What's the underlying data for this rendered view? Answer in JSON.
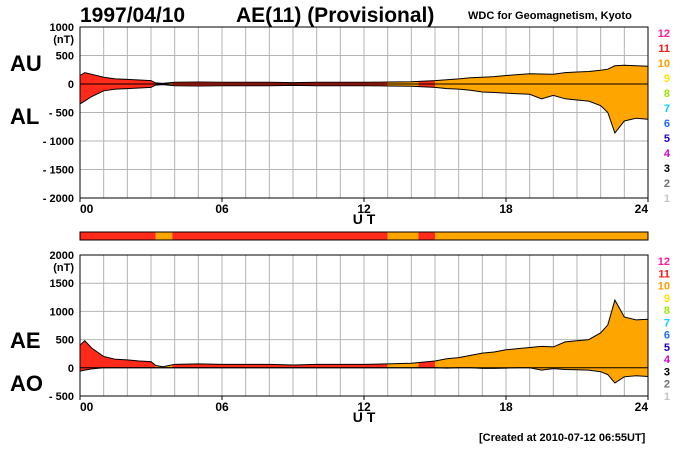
{
  "header": {
    "date": "1997/04/10",
    "title": "AE(11) (Provisional)",
    "source": "WDC for Geomagnetism, Kyoto"
  },
  "footer": {
    "created": "[Created at 2010-07-12 06:55UT]"
  },
  "side_labels": {
    "upper_top": "AU",
    "upper_bottom": "AL",
    "lower_top": "AE",
    "lower_bottom": "AO"
  },
  "colors": {
    "orange": "#ffa500",
    "red": "#ff2a1a",
    "grid": "#b4b4b4",
    "axis": "#000000"
  },
  "station_legend": [
    {
      "label": "12",
      "color": "#ff1a9b"
    },
    {
      "label": "11",
      "color": "#ff1a1a"
    },
    {
      "label": "10",
      "color": "#ff9c00"
    },
    {
      "label": "9",
      "color": "#ffe100"
    },
    {
      "label": "8",
      "color": "#9de600"
    },
    {
      "label": "7",
      "color": "#00d0ff"
    },
    {
      "label": "6",
      "color": "#1f6bff"
    },
    {
      "label": "5",
      "color": "#2000c8"
    },
    {
      "label": "4",
      "color": "#d200d2"
    },
    {
      "label": "3",
      "color": "#000000"
    },
    {
      "label": "2",
      "color": "#707070"
    },
    {
      "label": "1",
      "color": "#c4c4c4"
    }
  ],
  "chart_data": [
    {
      "type": "area",
      "series": [
        {
          "name": "AU",
          "x": [
            0,
            0.2,
            0.5,
            1,
            1.5,
            2,
            2.5,
            3,
            3.2,
            3.5,
            4,
            5,
            6,
            7,
            8,
            9,
            10,
            11,
            12,
            13,
            14,
            15,
            15.5,
            16,
            16.5,
            17,
            17.5,
            18,
            18.5,
            19,
            19.5,
            20,
            20.5,
            21,
            21.5,
            22,
            22.3,
            22.6,
            23,
            23.5,
            24
          ],
          "y": [
            150,
            200,
            170,
            120,
            90,
            80,
            70,
            60,
            20,
            10,
            30,
            35,
            30,
            30,
            30,
            25,
            30,
            30,
            30,
            35,
            40,
            60,
            75,
            90,
            110,
            120,
            130,
            150,
            165,
            180,
            175,
            170,
            200,
            210,
            220,
            240,
            260,
            320,
            330,
            320,
            310
          ]
        },
        {
          "name": "AL",
          "x": [
            0,
            0.2,
            0.5,
            1,
            1.5,
            2,
            2.5,
            3,
            3.2,
            3.5,
            4,
            5,
            6,
            7,
            8,
            9,
            10,
            11,
            12,
            13,
            14,
            15,
            15.5,
            16,
            16.5,
            17,
            17.5,
            18,
            18.5,
            19,
            19.5,
            20,
            20.5,
            21,
            21.5,
            22,
            22.3,
            22.6,
            23,
            23.5,
            24
          ],
          "y": [
            -350,
            -300,
            -220,
            -120,
            -90,
            -80,
            -70,
            -60,
            -20,
            -10,
            -30,
            -35,
            -30,
            -30,
            -30,
            -25,
            -30,
            -30,
            -30,
            -35,
            -40,
            -60,
            -80,
            -90,
            -110,
            -140,
            -150,
            -160,
            -170,
            -180,
            -260,
            -200,
            -260,
            -280,
            -300,
            -380,
            -500,
            -860,
            -650,
            -600,
            -620
          ]
        }
      ],
      "xlabel": "U T",
      "ylabel": "(nT)",
      "xlim": [
        0,
        24
      ],
      "ylim": [
        -2000,
        1000
      ],
      "xticks": [
        "00",
        "06",
        "12",
        "18",
        "24"
      ],
      "yticks": [
        "1000",
        "500",
        "0",
        "- 500",
        "- 1000",
        "- 1500",
        "- 2000"
      ],
      "grid": true
    },
    {
      "type": "area",
      "series": [
        {
          "name": "AE",
          "x": [
            0,
            0.2,
            0.5,
            1,
            1.5,
            2,
            2.5,
            3,
            3.2,
            3.5,
            4,
            5,
            6,
            7,
            8,
            9,
            10,
            11,
            12,
            13,
            14,
            15,
            15.5,
            16,
            16.5,
            17,
            17.5,
            18,
            18.5,
            19,
            19.5,
            20,
            20.5,
            21,
            21.5,
            22,
            22.3,
            22.6,
            23,
            23.5,
            24
          ],
          "y": [
            400,
            480,
            350,
            200,
            150,
            140,
            120,
            110,
            40,
            20,
            60,
            70,
            60,
            60,
            60,
            50,
            60,
            60,
            60,
            70,
            80,
            120,
            160,
            180,
            220,
            260,
            280,
            320,
            340,
            360,
            380,
            370,
            460,
            480,
            500,
            620,
            760,
            1200,
            900,
            850,
            860
          ]
        },
        {
          "name": "AO",
          "x": [
            0,
            0.2,
            0.5,
            1,
            1.5,
            2,
            2.5,
            3,
            3.2,
            3.5,
            4,
            5,
            6,
            7,
            8,
            9,
            10,
            11,
            12,
            13,
            14,
            15,
            15.5,
            16,
            16.5,
            17,
            17.5,
            18,
            18.5,
            19,
            19.5,
            20,
            20.5,
            21,
            21.5,
            22,
            22.3,
            22.6,
            23,
            23.5,
            24
          ],
          "y": [
            -60,
            -40,
            -20,
            0,
            0,
            0,
            0,
            0,
            0,
            0,
            0,
            0,
            0,
            0,
            0,
            0,
            0,
            0,
            0,
            0,
            0,
            0,
            -5,
            0,
            0,
            -10,
            -10,
            -5,
            0,
            0,
            -40,
            -15,
            -30,
            -35,
            -40,
            -70,
            -120,
            -270,
            -160,
            -140,
            -155
          ]
        }
      ],
      "xlabel": "U T",
      "ylabel": "(nT)",
      "xlim": [
        0,
        24
      ],
      "ylim": [
        -500,
        2000
      ],
      "xticks": [
        "00",
        "06",
        "12",
        "18",
        "24"
      ],
      "yticks": [
        "2000",
        "1500",
        "1000",
        "500",
        "0",
        "- 500"
      ],
      "grid": true
    }
  ],
  "station_bar": {
    "segments": [
      {
        "from": 0,
        "to": 3.2,
        "color": "red"
      },
      {
        "from": 3.2,
        "to": 3.9,
        "color": "orange"
      },
      {
        "from": 3.9,
        "to": 13,
        "color": "red"
      },
      {
        "from": 13,
        "to": 14.3,
        "color": "orange"
      },
      {
        "from": 14.3,
        "to": 15,
        "color": "red"
      },
      {
        "from": 15,
        "to": 24,
        "color": "orange"
      }
    ]
  }
}
